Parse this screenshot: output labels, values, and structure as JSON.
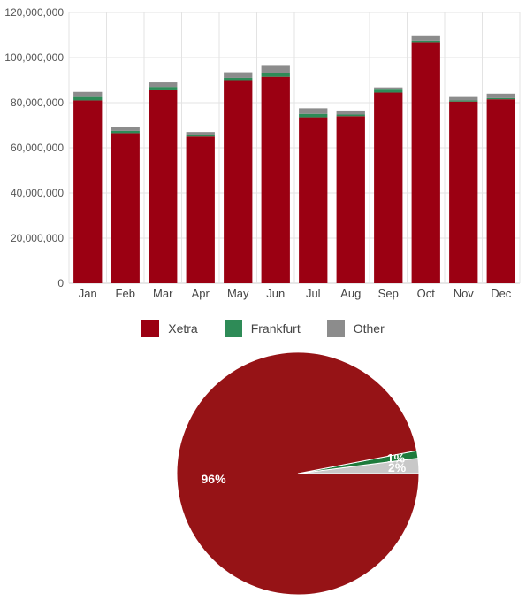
{
  "chart_data": [
    {
      "type": "bar",
      "stacked": true,
      "categories": [
        "Jan",
        "Feb",
        "Mar",
        "Apr",
        "May",
        "Jun",
        "Jul",
        "Aug",
        "Sep",
        "Oct",
        "Nov",
        "Dec"
      ],
      "series": [
        {
          "name": "Xetra",
          "color": "#9b0012",
          "values": [
            81000000,
            66500000,
            85500000,
            65000000,
            90000000,
            91500000,
            73500000,
            74000000,
            84500000,
            106500000,
            80500000,
            81500000
          ]
        },
        {
          "name": "Frankfurt",
          "color": "#2e8b57",
          "values": [
            1500000,
            1000000,
            1500000,
            500000,
            1000000,
            1500000,
            1500000,
            700000,
            1300000,
            1000000,
            500000,
            500000
          ]
        },
        {
          "name": "Other",
          "color": "#8c8c8c",
          "values": [
            2300000,
            1800000,
            2000000,
            1500000,
            2500000,
            3700000,
            2500000,
            1800000,
            1000000,
            2000000,
            1500000,
            2000000
          ]
        }
      ],
      "ylim": [
        0,
        120000000
      ],
      "yticks": [
        "0",
        "20,000,000",
        "40,000,000",
        "60,000,000",
        "80,000,000",
        "100,000,000",
        "120,000,000"
      ],
      "grid": true,
      "legend": "bottom"
    },
    {
      "type": "pie",
      "slices": [
        {
          "name": "Xetra",
          "value": 96,
          "label": "96%",
          "color": "#961316"
        },
        {
          "name": "Frankfurt",
          "value": 1,
          "label": "1%",
          "color": "#1e7b3c"
        },
        {
          "name": "Other",
          "value": 2,
          "label": "2%",
          "color": "#c8c8c8"
        }
      ]
    }
  ],
  "legend": {
    "items": [
      {
        "label": "Xetra",
        "color": "#9b0012"
      },
      {
        "label": "Frankfurt",
        "color": "#2e8b57"
      },
      {
        "label": "Other",
        "color": "#8c8c8c"
      }
    ]
  }
}
